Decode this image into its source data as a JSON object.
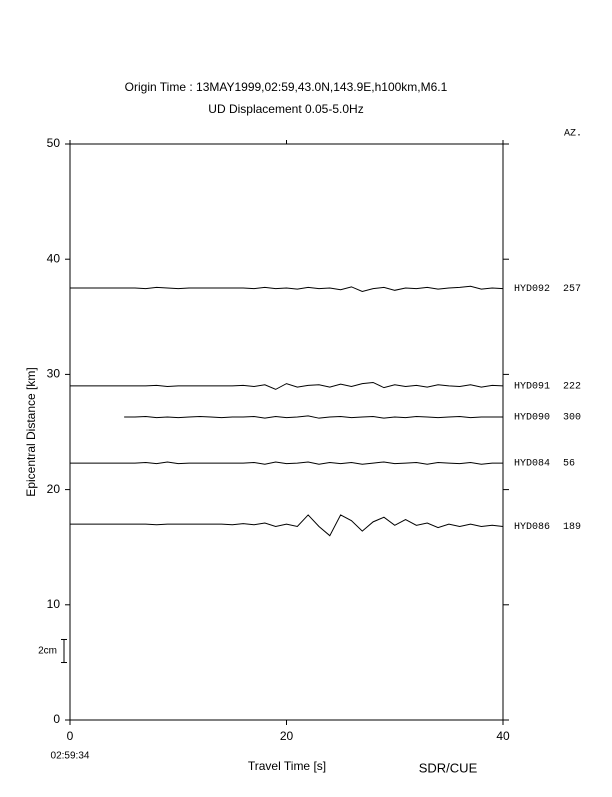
{
  "chart_data": {
    "type": "record-section",
    "title": "Origin Time : 13MAY1999,02:59,43.0N,143.9E,h100km,M6.1",
    "subtitle": "UD Displacement 0.05-5.0Hz",
    "xlabel": "Travel Time [s]",
    "ylabel": "Epicentral Distance [km]",
    "start_time": "02:59:34",
    "azimuth_header": "AZ.",
    "credit": "SDR/CUE",
    "scale_bar": {
      "label": "2cm",
      "length": 2
    },
    "xlim": [
      0,
      40
    ],
    "xticks": [
      0,
      20,
      40
    ],
    "ylim": [
      0,
      50
    ],
    "yticks": [
      0,
      10,
      20,
      30,
      40,
      50
    ],
    "x": [
      0,
      1,
      2,
      3,
      4,
      5,
      6,
      7,
      8,
      9,
      10,
      11,
      12,
      13,
      14,
      15,
      16,
      17,
      18,
      19,
      20,
      21,
      22,
      23,
      24,
      25,
      26,
      27,
      28,
      29,
      30,
      31,
      32,
      33,
      34,
      35,
      36,
      37,
      38,
      39,
      40
    ],
    "series": [
      {
        "name": "HYD092",
        "azimuth": 257,
        "color": "#000000",
        "values": [
          37.5,
          37.5,
          37.5,
          37.5,
          37.5,
          37.5,
          37.5,
          37.45,
          37.55,
          37.5,
          37.45,
          37.5,
          37.5,
          37.5,
          37.5,
          37.5,
          37.5,
          37.45,
          37.55,
          37.45,
          37.5,
          37.4,
          37.55,
          37.45,
          37.5,
          37.35,
          37.6,
          37.2,
          37.45,
          37.55,
          37.3,
          37.5,
          37.45,
          37.55,
          37.4,
          37.5,
          37.55,
          37.65,
          37.4,
          37.5,
          37.45
        ]
      },
      {
        "name": "HYD091",
        "azimuth": 222,
        "color": "#000000",
        "values": [
          29,
          29,
          29,
          29,
          29,
          29,
          29,
          29,
          29.05,
          28.95,
          29,
          29,
          29,
          29,
          29,
          29,
          29.05,
          28.95,
          29.1,
          28.7,
          29.2,
          28.9,
          29.05,
          29.1,
          28.9,
          29.15,
          28.95,
          29.2,
          29.3,
          28.85,
          29.1,
          28.95,
          29.05,
          28.9,
          29.1,
          29,
          28.95,
          29.1,
          28.9,
          29.05,
          29
        ]
      },
      {
        "name": "HYD090",
        "azimuth": 300,
        "color": "#000000",
        "values": [
          null,
          null,
          null,
          null,
          null,
          26.3,
          26.3,
          26.35,
          26.25,
          26.3,
          26.25,
          26.3,
          26.35,
          26.3,
          26.25,
          26.3,
          26.3,
          26.35,
          26.2,
          26.35,
          26.25,
          26.3,
          26.4,
          26.2,
          26.3,
          26.35,
          26.25,
          26.3,
          26.35,
          26.2,
          26.3,
          26.25,
          26.35,
          26.3,
          26.25,
          26.3,
          26.35,
          26.25,
          26.3,
          26.3,
          26.3
        ]
      },
      {
        "name": "HYD084",
        "azimuth": 56,
        "color": "#000000",
        "values": [
          22.3,
          22.3,
          22.3,
          22.3,
          22.3,
          22.3,
          22.3,
          22.35,
          22.25,
          22.4,
          22.25,
          22.3,
          22.3,
          22.3,
          22.3,
          22.3,
          22.3,
          22.35,
          22.2,
          22.4,
          22.25,
          22.3,
          22.4,
          22.2,
          22.35,
          22.25,
          22.35,
          22.2,
          22.3,
          22.4,
          22.25,
          22.3,
          22.35,
          22.2,
          22.35,
          22.3,
          22.25,
          22.35,
          22.2,
          22.3,
          22.3
        ]
      },
      {
        "name": "HYD086",
        "azimuth": 189,
        "color": "#000000",
        "values": [
          17,
          17,
          17,
          17,
          17,
          17,
          17,
          17,
          16.95,
          17,
          17,
          17,
          17,
          17,
          17,
          16.95,
          17.05,
          16.95,
          17.1,
          16.8,
          17,
          16.8,
          17.8,
          16.8,
          16,
          17.8,
          17.3,
          16.4,
          17.2,
          17.6,
          16.9,
          17.4,
          16.9,
          17.1,
          16.7,
          17,
          16.8,
          17,
          16.8,
          16.9,
          16.8
        ]
      }
    ]
  }
}
